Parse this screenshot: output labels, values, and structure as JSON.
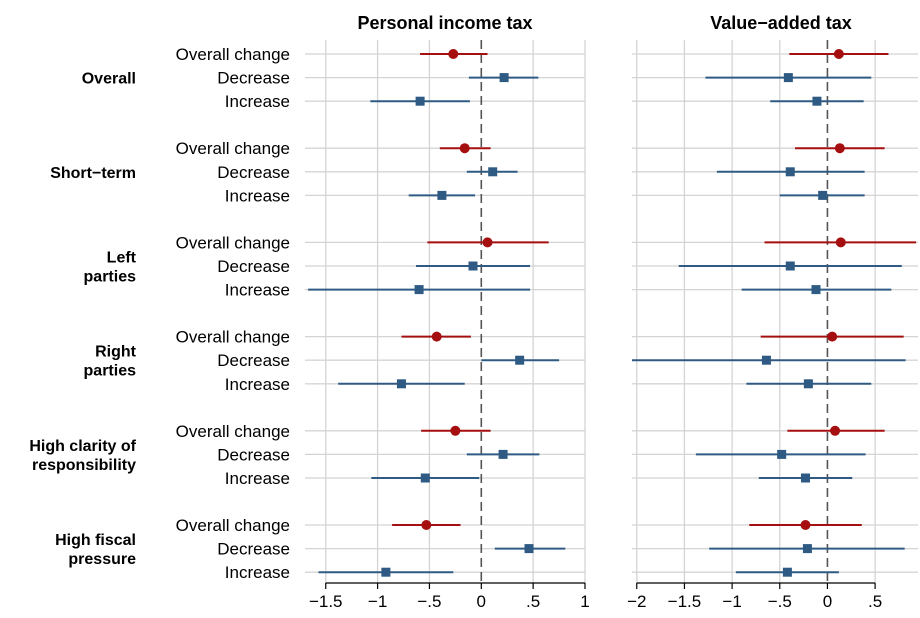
{
  "chart_data": {
    "type": "forest",
    "colors": {
      "overall": "#a50f0f",
      "effect": "#2e5a83",
      "grid": "#d4d4d4",
      "zero_line": "#555555"
    },
    "groups": [
      {
        "label_lines": [
          "Overall"
        ],
        "rows": [
          "Overall change",
          "Decrease",
          "Increase"
        ]
      },
      {
        "label_lines": [
          "Short−term"
        ],
        "rows": [
          "Overall change",
          "Decrease",
          "Increase"
        ]
      },
      {
        "label_lines": [
          "Left",
          "parties"
        ],
        "rows": [
          "Overall change",
          "Decrease",
          "Increase"
        ]
      },
      {
        "label_lines": [
          "Right",
          "parties"
        ],
        "rows": [
          "Overall change",
          "Decrease",
          "Increase"
        ]
      },
      {
        "label_lines": [
          "High clarity of",
          "responsibility"
        ],
        "rows": [
          "Overall change",
          "Decrease",
          "Increase"
        ]
      },
      {
        "label_lines": [
          "High fiscal",
          "pressure"
        ],
        "rows": [
          "Overall change",
          "Decrease",
          "Increase"
        ]
      }
    ],
    "panels": [
      {
        "title": "Personal income tax",
        "xlim": [
          -1.7,
          1.0
        ],
        "ticks": [
          {
            "v": -1.5,
            "label": "−1.5"
          },
          {
            "v": -1,
            "label": "−1"
          },
          {
            "v": -0.5,
            "label": "−.5"
          },
          {
            "v": 0,
            "label": "0"
          },
          {
            "v": 0.5,
            "label": ".5"
          },
          {
            "v": 1,
            "label": "1"
          }
        ],
        "estimates": [
          [
            [
              -0.27,
              -0.59,
              0.06
            ],
            [
              0.22,
              -0.12,
              0.55
            ],
            [
              -0.59,
              -1.07,
              -0.11
            ]
          ],
          [
            [
              -0.16,
              -0.4,
              0.09
            ],
            [
              0.11,
              -0.14,
              0.35
            ],
            [
              -0.38,
              -0.7,
              -0.06
            ]
          ],
          [
            [
              0.06,
              -0.52,
              0.65
            ],
            [
              -0.08,
              -0.63,
              0.47
            ],
            [
              -0.6,
              -1.67,
              0.47
            ]
          ],
          [
            [
              -0.43,
              -0.77,
              -0.1
            ],
            [
              0.37,
              0.0,
              0.75
            ],
            [
              -0.77,
              -1.38,
              -0.16
            ]
          ],
          [
            [
              -0.25,
              -0.58,
              0.09
            ],
            [
              0.21,
              -0.14,
              0.56
            ],
            [
              -0.54,
              -1.06,
              -0.02
            ]
          ],
          [
            [
              -0.53,
              -0.86,
              -0.2
            ],
            [
              0.46,
              0.13,
              0.81
            ],
            [
              -0.92,
              -1.57,
              -0.27
            ]
          ]
        ]
      },
      {
        "title": "Value−added tax",
        "xlim": [
          -2.05,
          0.95
        ],
        "ticks": [
          {
            "v": -2,
            "label": "−2"
          },
          {
            "v": -1.5,
            "label": "−1.5"
          },
          {
            "v": -1,
            "label": "−1"
          },
          {
            "v": -0.5,
            "label": "−.5"
          },
          {
            "v": 0,
            "label": "0"
          },
          {
            "v": 0.5,
            "label": ".5"
          }
        ],
        "estimates": [
          [
            [
              0.12,
              -0.4,
              0.64
            ],
            [
              -0.41,
              -1.28,
              0.46
            ],
            [
              -0.11,
              -0.6,
              0.38
            ]
          ],
          [
            [
              0.13,
              -0.34,
              0.6
            ],
            [
              -0.39,
              -1.16,
              0.39
            ],
            [
              -0.05,
              -0.5,
              0.39
            ]
          ],
          [
            [
              0.14,
              -0.66,
              0.93
            ],
            [
              -0.39,
              -1.56,
              0.78
            ],
            [
              -0.12,
              -0.9,
              0.67
            ]
          ],
          [
            [
              0.05,
              -0.7,
              0.8
            ],
            [
              -0.64,
              -2.05,
              0.82
            ],
            [
              -0.2,
              -0.85,
              0.46
            ]
          ],
          [
            [
              0.08,
              -0.42,
              0.6
            ],
            [
              -0.48,
              -1.38,
              0.4
            ],
            [
              -0.23,
              -0.72,
              0.26
            ]
          ],
          [
            [
              -0.23,
              -0.82,
              0.36
            ],
            [
              -0.21,
              -1.24,
              0.81
            ],
            [
              -0.42,
              -0.96,
              0.12
            ]
          ]
        ]
      }
    ]
  }
}
